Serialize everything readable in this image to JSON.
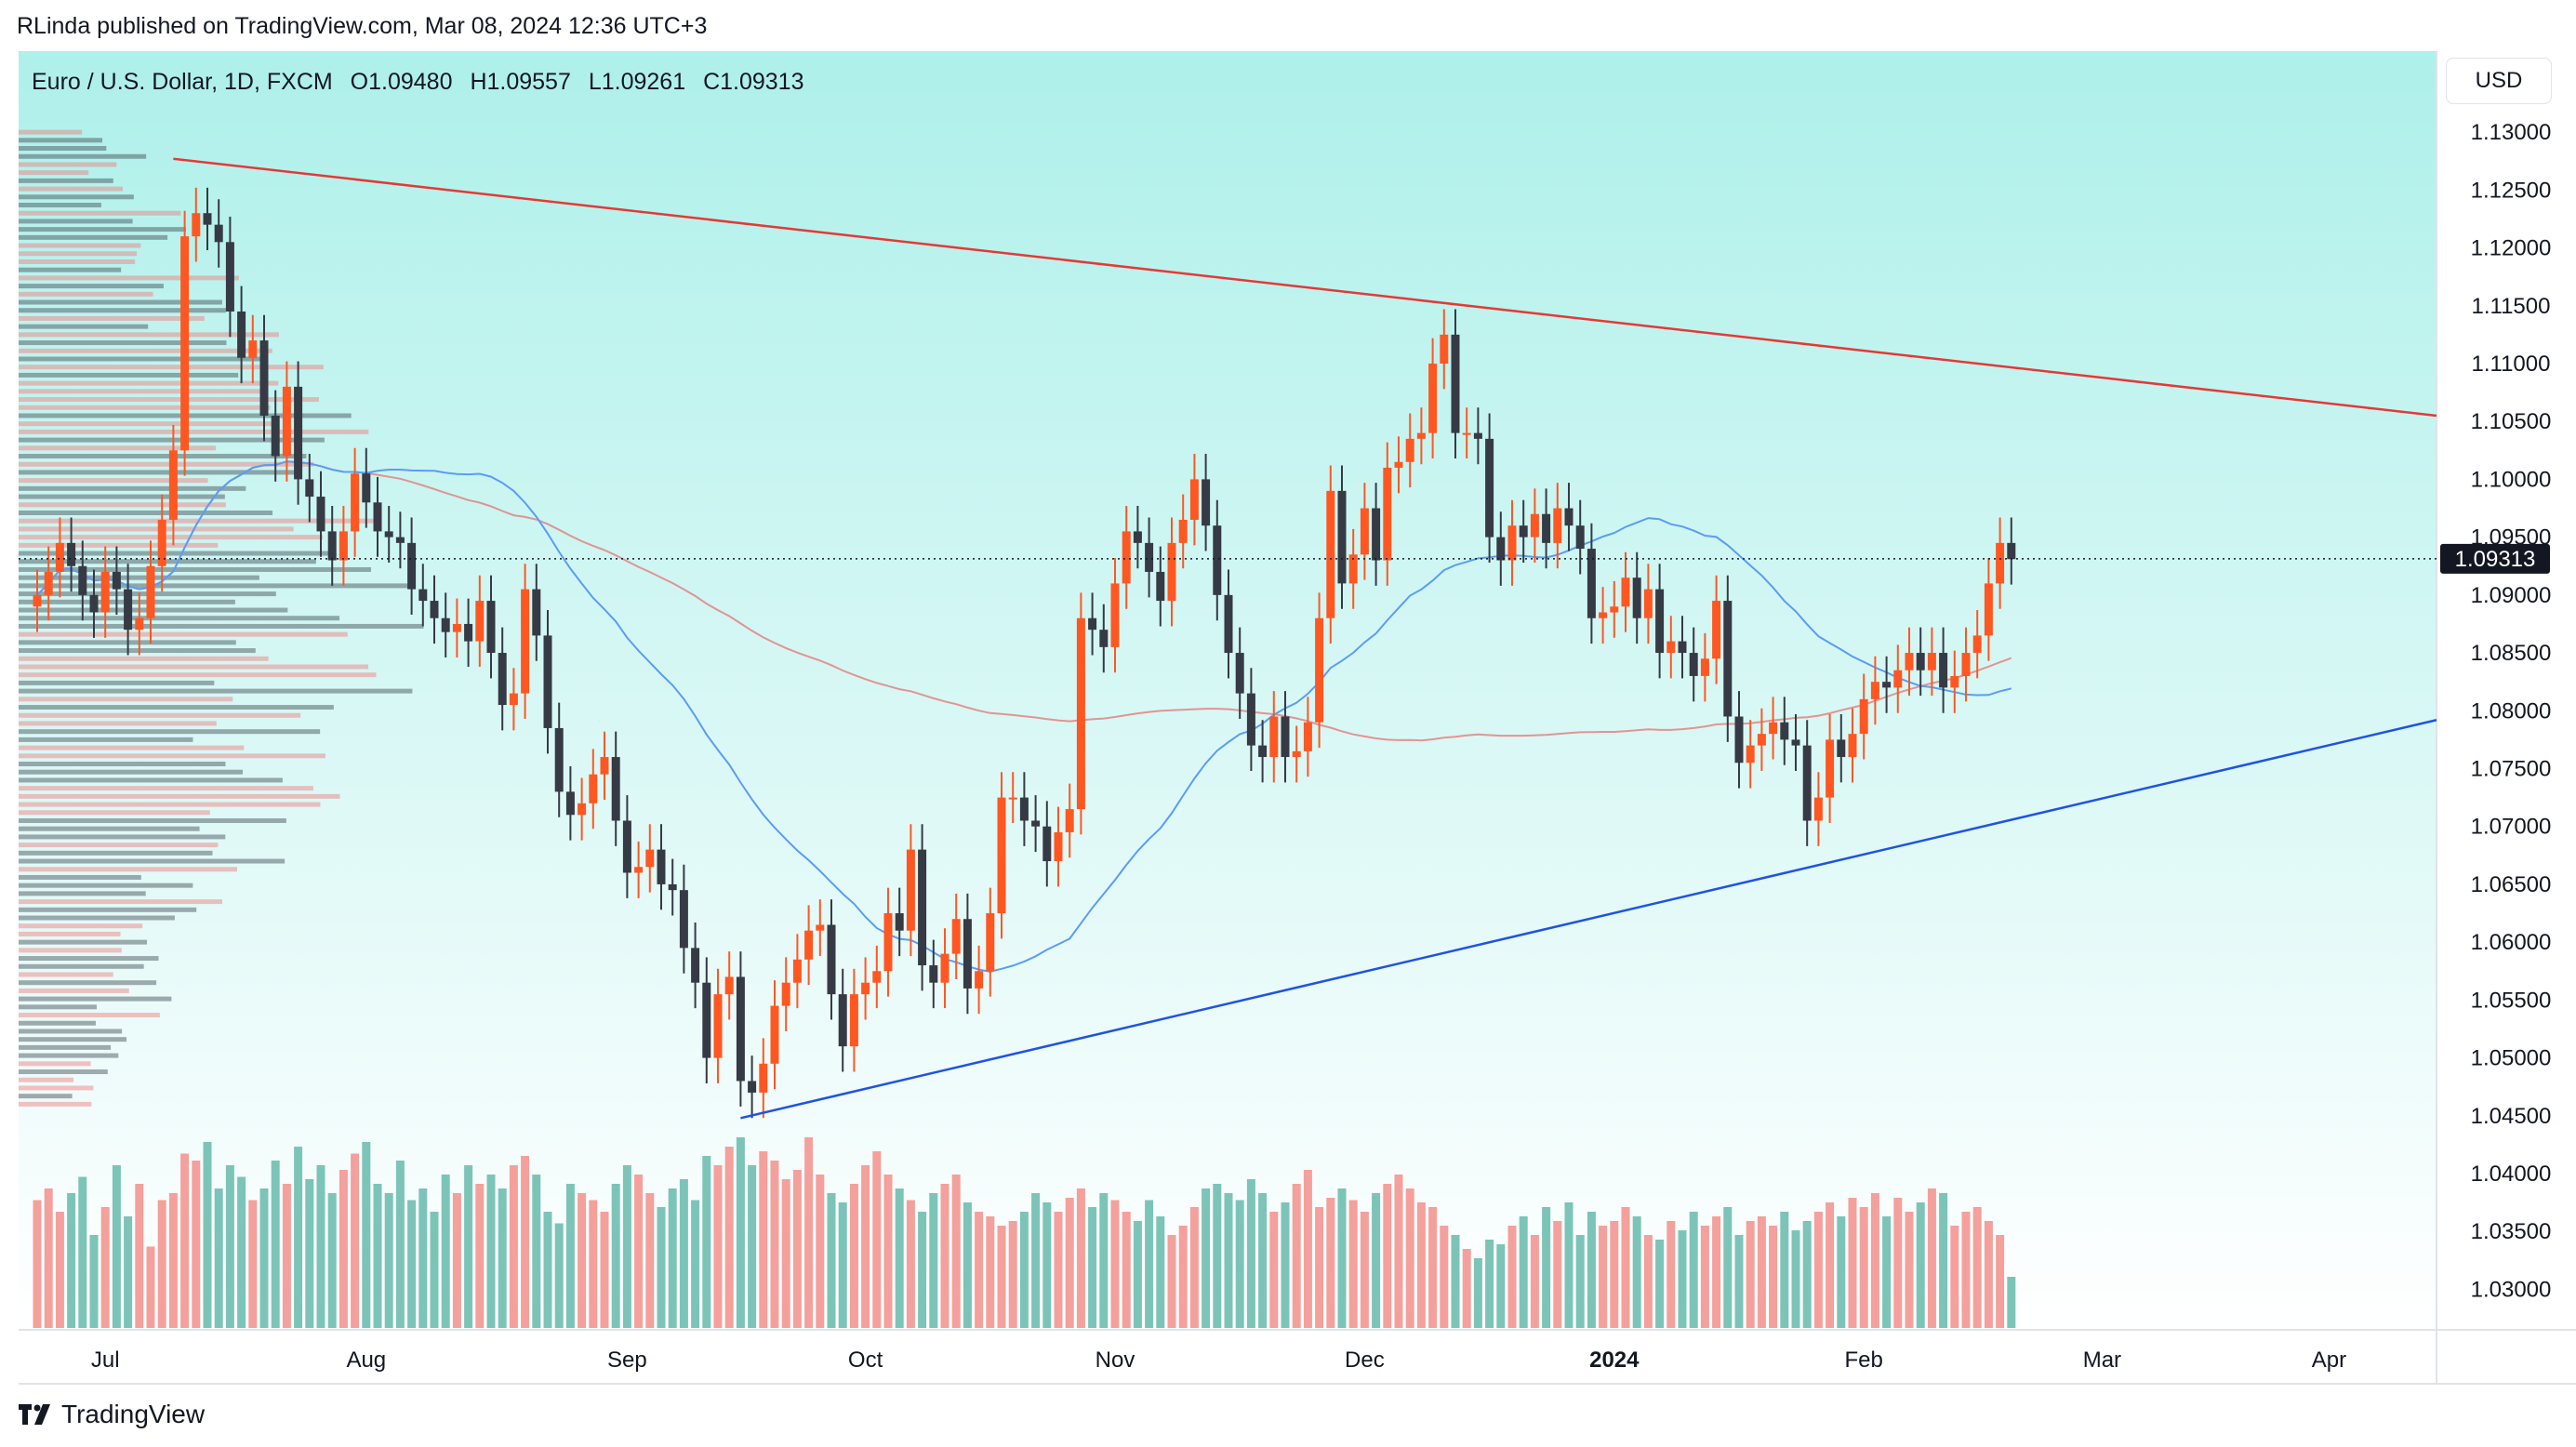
{
  "header": {
    "text": "RLinda published on TradingView.com, Mar 08, 2024 12:36 UTC+3"
  },
  "symbol": {
    "name": "Euro / U.S. Dollar, 1D, FXCM",
    "open": "O1.09480",
    "high": "H1.09557",
    "low": "L1.09261",
    "close": "C1.09313"
  },
  "currency_button": "USD",
  "last_price_label": "1.09313",
  "footer": {
    "brand": "TradingView"
  },
  "colors": {
    "up": "#ff5722",
    "down": "#363a45",
    "upper_line": "#e53935",
    "lower_line": "#1e53e5",
    "ma_fast": "#5b9cf6",
    "ma_slow": "#e57373",
    "vol_up": "#f4a09c",
    "vol_down": "#7cc4b8"
  },
  "chart_data": {
    "type": "candlestick",
    "ylim": [
      1.0265,
      1.137
    ],
    "y_ticks": [
      "1.13000",
      "1.12500",
      "1.12000",
      "1.11500",
      "1.11000",
      "1.10500",
      "1.10000",
      "1.09500",
      "1.09000",
      "1.08500",
      "1.08000",
      "1.07500",
      "1.07000",
      "1.06500",
      "1.06000",
      "1.05500",
      "1.05000",
      "1.04500",
      "1.04000",
      "1.03500",
      "1.03000"
    ],
    "x_labels": [
      "Jul",
      "Aug",
      "Sep",
      "Oct",
      "Nov",
      "Dec",
      "2024",
      "Feb",
      "Mar",
      "Apr"
    ],
    "closes": [
      1.09,
      1.092,
      1.0945,
      1.0925,
      1.09,
      1.0885,
      1.092,
      1.0905,
      1.087,
      1.088,
      1.0925,
      1.0965,
      1.1025,
      1.121,
      1.123,
      1.122,
      1.1205,
      1.1145,
      1.1105,
      1.112,
      1.1055,
      1.102,
      1.108,
      1.1,
      1.0985,
      1.0955,
      1.093,
      1.0955,
      1.1005,
      1.098,
      1.0955,
      1.095,
      1.0945,
      1.0905,
      1.0895,
      1.088,
      1.0868,
      1.0875,
      1.086,
      1.0895,
      1.085,
      1.0805,
      1.0815,
      1.0905,
      1.0865,
      1.0785,
      1.073,
      1.071,
      1.072,
      1.0745,
      1.076,
      1.0705,
      1.066,
      1.0665,
      1.068,
      1.065,
      1.0645,
      1.0595,
      1.0565,
      1.05,
      1.0555,
      1.057,
      1.048,
      1.047,
      1.0495,
      1.0545,
      1.0565,
      1.0585,
      1.061,
      1.0615,
      1.0555,
      1.051,
      1.0555,
      1.0565,
      1.0575,
      1.0625,
      1.061,
      1.068,
      1.058,
      1.0565,
      1.059,
      1.062,
      1.056,
      1.0575,
      1.0625,
      1.0725,
      1.0725,
      1.0705,
      1.07,
      1.067,
      1.0695,
      1.0715,
      1.088,
      1.087,
      1.0855,
      1.091,
      1.0955,
      1.0945,
      1.092,
      1.0895,
      1.0945,
      1.0965,
      1.1,
      1.096,
      1.09,
      1.085,
      1.0815,
      1.077,
      1.076,
      1.0795,
      1.076,
      1.0765,
      1.079,
      1.088,
      1.099,
      1.091,
      1.0935,
      1.0975,
      1.093,
      1.101,
      1.1015,
      1.1035,
      1.104,
      1.11,
      1.1125,
      1.104,
      1.104,
      1.1035,
      1.095,
      1.093,
      1.096,
      1.095,
      1.097,
      1.0945,
      1.0975,
      1.096,
      1.094,
      1.088,
      1.0885,
      1.089,
      1.0915,
      1.088,
      1.0905,
      1.085,
      1.086,
      1.085,
      1.083,
      1.0845,
      1.0895,
      1.0795,
      1.0755,
      1.077,
      1.078,
      1.079,
      1.0775,
      1.077,
      1.0705,
      1.0725,
      1.0775,
      1.076,
      1.078,
      1.081,
      1.0825,
      1.082,
      1.0835,
      1.085,
      1.0835,
      1.085,
      1.082,
      1.083,
      1.085,
      1.0865,
      1.091,
      1.0945,
      1.0931
    ],
    "volume": [
      0.55,
      0.6,
      0.5,
      0.58,
      0.65,
      0.4,
      0.52,
      0.7,
      0.48,
      0.62,
      0.35,
      0.55,
      0.58,
      0.75,
      0.72,
      0.8,
      0.6,
      0.7,
      0.65,
      0.55,
      0.6,
      0.72,
      0.62,
      0.78,
      0.64,
      0.7,
      0.58,
      0.68,
      0.75,
      0.8,
      0.62,
      0.58,
      0.72,
      0.55,
      0.6,
      0.5,
      0.66,
      0.58,
      0.7,
      0.62,
      0.66,
      0.6,
      0.7,
      0.74,
      0.66,
      0.5,
      0.45,
      0.62,
      0.58,
      0.55,
      0.5,
      0.62,
      0.7,
      0.66,
      0.58,
      0.52,
      0.6,
      0.64,
      0.55,
      0.74,
      0.7,
      0.78,
      0.82,
      0.7,
      0.76,
      0.72,
      0.64,
      0.68,
      0.82,
      0.66,
      0.58,
      0.54,
      0.62,
      0.7,
      0.76,
      0.66,
      0.6,
      0.55,
      0.5,
      0.58,
      0.62,
      0.66,
      0.54,
      0.5,
      0.48,
      0.44,
      0.46,
      0.5,
      0.58,
      0.54,
      0.5,
      0.56,
      0.6,
      0.52,
      0.58,
      0.55,
      0.5,
      0.46,
      0.55,
      0.48,
      0.4,
      0.44,
      0.52,
      0.6,
      0.62,
      0.58,
      0.55,
      0.64,
      0.58,
      0.5,
      0.54,
      0.62,
      0.68,
      0.52,
      0.56,
      0.6,
      0.55,
      0.5,
      0.58,
      0.62,
      0.66,
      0.6,
      0.54,
      0.52,
      0.44,
      0.4,
      0.34,
      0.3,
      0.38,
      0.36,
      0.44,
      0.48,
      0.4,
      0.52,
      0.46,
      0.54,
      0.4,
      0.5,
      0.44,
      0.46,
      0.52,
      0.48,
      0.4,
      0.38,
      0.46,
      0.42,
      0.5,
      0.44,
      0.48,
      0.52,
      0.4,
      0.46,
      0.48,
      0.44,
      0.5,
      0.42,
      0.46,
      0.5,
      0.54,
      0.48,
      0.56,
      0.52,
      0.58,
      0.48,
      0.56,
      0.5,
      0.54,
      0.6,
      0.58,
      0.44,
      0.5,
      0.52,
      0.46,
      0.4,
      0.22
    ]
  }
}
